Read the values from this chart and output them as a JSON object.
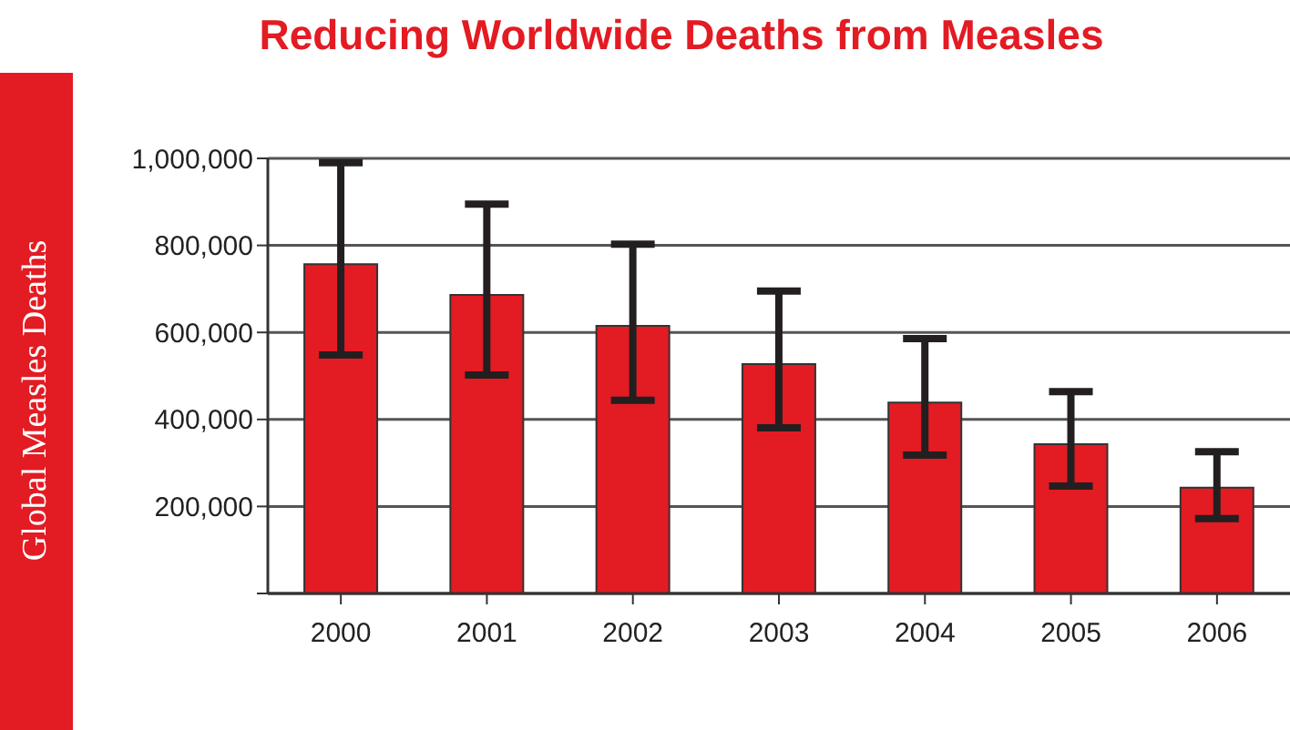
{
  "chart_data": {
    "type": "bar",
    "title": "Reducing Worldwide Deaths from Measles",
    "ylabel": "Global Measles Deaths",
    "categories": [
      "2000",
      "2001",
      "2002",
      "2003",
      "2004",
      "2005",
      "2006"
    ],
    "values": [
      757000,
      686000,
      615000,
      527000,
      439000,
      343000,
      243000
    ],
    "errors": [
      [
        548000,
        990000
      ],
      [
        502000,
        895000
      ],
      [
        444000,
        803000
      ],
      [
        381000,
        695000
      ],
      [
        318000,
        586000
      ],
      [
        247000,
        464000
      ],
      [
        172000,
        326000
      ]
    ],
    "color": "#e31b23",
    "ylim": [
      0,
      1000000
    ],
    "yticks": [
      {
        "value": 0,
        "label": null
      },
      {
        "value": 200000,
        "label": "200,000"
      },
      {
        "value": 400000,
        "label": "400,000"
      },
      {
        "value": 600000,
        "label": "600,000"
      },
      {
        "value": 800000,
        "label": "800,000"
      },
      {
        "value": 1000000,
        "label": "1,000,000"
      }
    ],
    "grid": "y"
  }
}
